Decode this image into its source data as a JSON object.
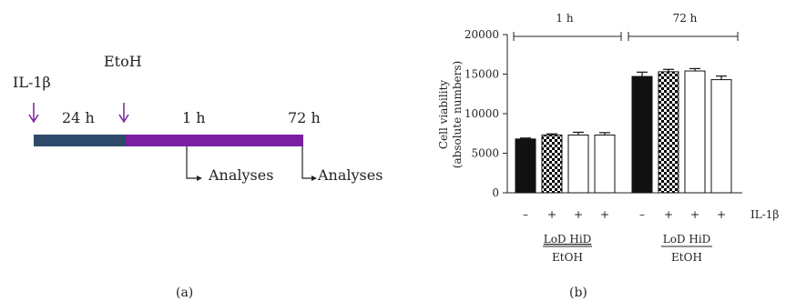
{
  "panel_a": {
    "label": "(a)",
    "il1b_label": "IL-1β",
    "etoh_label": "EtoH",
    "time_24h": "24 h",
    "time_1h": "1 h",
    "time_72h": "72 h",
    "analyses_1": "Analyses",
    "analyses_2": "Analyses",
    "colors": {
      "pre_bar": "#2e4a6b",
      "post_bar": "#7b1fa2",
      "arrow": "#7b1fa2"
    }
  },
  "panel_b": {
    "label": "(b)",
    "group_1h": "1 h",
    "group_72h": "72 h",
    "ylabel_line1": "Cell viability",
    "ylabel_line2": "(absolute numbers)",
    "il1b_row_label": "IL-1β",
    "il1b_signs": [
      "–",
      "+",
      "+",
      "+",
      "–",
      "+",
      "+",
      "+"
    ],
    "treatment_top_1": "LoD HiD",
    "treatment_bottom_1": "EtOH",
    "treatment_top_2": "LoD HiD",
    "treatment_bottom_2": "EtOH"
  },
  "chart_data": {
    "type": "bar",
    "ylim": [
      0,
      20000
    ],
    "yticks": [
      0,
      5000,
      10000,
      15000,
      20000
    ],
    "groups": [
      {
        "name": "1 h",
        "bars": [
          {
            "value": 6800,
            "error": 120,
            "fill": "black"
          },
          {
            "value": 7300,
            "error": 150,
            "fill": "checker"
          },
          {
            "value": 7300,
            "error": 350,
            "fill": "white"
          },
          {
            "value": 7300,
            "error": 300,
            "fill": "white"
          }
        ]
      },
      {
        "name": "72 h",
        "bars": [
          {
            "value": 14700,
            "error": 550,
            "fill": "black"
          },
          {
            "value": 15300,
            "error": 300,
            "fill": "checker"
          },
          {
            "value": 15400,
            "error": 300,
            "fill": "white"
          },
          {
            "value": 14300,
            "error": 450,
            "fill": "white"
          }
        ]
      }
    ]
  }
}
